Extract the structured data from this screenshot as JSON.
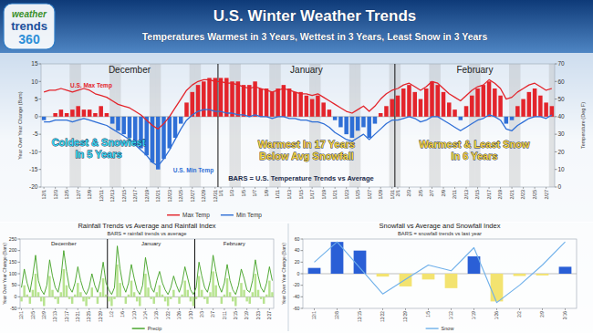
{
  "header": {
    "logo": [
      "weather",
      "trends",
      "360"
    ],
    "title": "U.S. Winter Weather Trends",
    "subtitle": "Temperatures Warmest in 3 Years, Wettest in 3 Years, Least Snow in 3 Years"
  },
  "chart_data": [
    {
      "type": "bar",
      "y_label": "Year Over Year Change (Bars)",
      "y2_label": "Temperature (Deg F)",
      "grid": false,
      "months": [
        {
          "label": "December",
          "index": 0
        },
        {
          "label": "January",
          "index": 31
        },
        {
          "label": "February",
          "index": 62
        }
      ],
      "annotations": [
        [
          "Coldest & Snowiest",
          "In 5 Years"
        ],
        [
          "Warmest In 17 Years",
          "Below Avg Snowfall"
        ],
        [
          "Warmest & Least Snow",
          "In 6 Years"
        ],
        [
          "BARS = U.S. Temperature Trends vs Average"
        ],
        [
          "U.S. Max Temp"
        ],
        [
          "U.S. Min Temp"
        ]
      ],
      "categories": [
        "12/1",
        null,
        "12/3",
        null,
        "12/5",
        null,
        "12/7",
        null,
        "12/9",
        null,
        "12/11",
        null,
        "12/13",
        null,
        "12/15",
        null,
        "12/17",
        null,
        "12/19",
        null,
        "12/21",
        null,
        "12/23",
        null,
        "12/25",
        null,
        "12/27",
        null,
        "12/29",
        null,
        "12/31",
        "1/1",
        null,
        "1/3",
        null,
        "1/5",
        null,
        "1/7",
        null,
        "1/9",
        null,
        "1/11",
        null,
        "1/13",
        null,
        "1/15",
        null,
        "1/17",
        null,
        "1/19",
        null,
        "1/21",
        null,
        "1/23",
        null,
        "1/25",
        null,
        "1/27",
        null,
        "1/29",
        null,
        "1/31",
        "2/1",
        null,
        "2/3",
        null,
        "2/5",
        null,
        "2/7",
        null,
        "2/9",
        null,
        "2/11",
        null,
        "2/13",
        null,
        "2/15",
        null,
        "2/17",
        null,
        "2/19",
        null,
        "2/21",
        null,
        "2/23",
        null,
        "2/25",
        null,
        "2/27",
        null
      ],
      "ylim": [
        -20,
        15
      ],
      "yticks": [
        -20,
        -15,
        -10,
        -5,
        0,
        5,
        10,
        15
      ],
      "y2lim": [
        0,
        70
      ],
      "y2ticks": [
        0,
        10,
        20,
        30,
        40,
        50,
        60,
        70
      ],
      "series": [
        {
          "type": "bar",
          "values": [
            -1,
            0,
            1,
            2,
            1,
            2,
            3,
            2,
            2,
            1,
            3,
            1,
            -2,
            -4,
            -5,
            -6,
            -8,
            -9,
            -11,
            -13,
            -15,
            -12,
            -9,
            -6,
            -2,
            4,
            7,
            9,
            10,
            11,
            11,
            11,
            11,
            10,
            10,
            9,
            9,
            10,
            8,
            8,
            7,
            8,
            9,
            8,
            7,
            7,
            6,
            5,
            6,
            4,
            2,
            -1,
            -3,
            -5,
            -6,
            -4,
            -3,
            -6,
            -2,
            1,
            3,
            5,
            6,
            8,
            9,
            7,
            5,
            8,
            10,
            9,
            7,
            4,
            2,
            -1,
            3,
            6,
            8,
            9,
            10,
            8,
            6,
            -2,
            -1,
            3,
            5,
            7,
            8,
            6,
            4,
            3
          ],
          "colors": [
            "#2f6fd6",
            "#e3242b",
            "#e3242b",
            "#e3242b",
            "#e3242b",
            "#e3242b",
            "#e3242b",
            "#e3242b",
            "#e3242b",
            "#e3242b",
            "#e3242b",
            "#e3242b",
            "#2f6fd6",
            "#2f6fd6",
            "#2f6fd6",
            "#2f6fd6",
            "#2f6fd6",
            "#2f6fd6",
            "#2f6fd6",
            "#2f6fd6",
            "#2f6fd6",
            "#2f6fd6",
            "#2f6fd6",
            "#2f6fd6",
            "#2f6fd6",
            "#e3242b",
            "#e3242b",
            "#e3242b",
            "#e3242b",
            "#e3242b",
            "#e3242b",
            "#e3242b",
            "#e3242b",
            "#e3242b",
            "#e3242b",
            "#e3242b",
            "#e3242b",
            "#e3242b",
            "#e3242b",
            "#e3242b",
            "#e3242b",
            "#e3242b",
            "#e3242b",
            "#e3242b",
            "#e3242b",
            "#e3242b",
            "#e3242b",
            "#e3242b",
            "#e3242b",
            "#e3242b",
            "#e3242b",
            "#2f6fd6",
            "#2f6fd6",
            "#2f6fd6",
            "#2f6fd6",
            "#2f6fd6",
            "#2f6fd6",
            "#2f6fd6",
            "#2f6fd6",
            "#e3242b",
            "#e3242b",
            "#e3242b",
            "#e3242b",
            "#e3242b",
            "#e3242b",
            "#e3242b",
            "#e3242b",
            "#e3242b",
            "#e3242b",
            "#e3242b",
            "#e3242b",
            "#e3242b",
            "#e3242b",
            "#2f6fd6",
            "#e3242b",
            "#e3242b",
            "#e3242b",
            "#e3242b",
            "#e3242b",
            "#e3242b",
            "#e3242b",
            "#2f6fd6",
            "#2f6fd6",
            "#e3242b",
            "#e3242b",
            "#e3242b",
            "#e3242b",
            "#e3242b",
            "#e3242b",
            "#e3242b"
          ]
        },
        {
          "name": "Max Temp",
          "type": "line",
          "axis": "y2",
          "color": "#e3242b",
          "values": [
            54,
            55,
            55,
            56,
            55,
            54,
            55,
            56,
            55,
            53,
            52,
            51,
            49,
            47,
            46,
            45,
            43,
            41,
            38,
            35,
            33,
            36,
            40,
            45,
            50,
            55,
            58,
            60,
            61,
            61,
            60,
            60,
            59,
            59,
            58,
            57,
            56,
            57,
            56,
            55,
            54,
            55,
            56,
            55,
            54,
            53,
            53,
            52,
            53,
            51,
            49,
            47,
            45,
            43,
            42,
            44,
            46,
            43,
            46,
            50,
            53,
            55,
            56,
            58,
            59,
            57,
            55,
            57,
            60,
            59,
            56,
            53,
            51,
            49,
            52,
            55,
            57,
            58,
            61,
            59,
            56,
            50,
            51,
            54,
            56,
            58,
            59,
            57,
            55,
            56
          ]
        },
        {
          "name": "Min Temp",
          "type": "line",
          "axis": "y2",
          "color": "#2f6fd6",
          "values": [
            37,
            37,
            38,
            38,
            38,
            37,
            38,
            39,
            38,
            37,
            36,
            35,
            33,
            31,
            29,
            27,
            24,
            21,
            18,
            14,
            12,
            16,
            21,
            27,
            33,
            38,
            41,
            43,
            44,
            44,
            43,
            43,
            42,
            42,
            41,
            41,
            40,
            41,
            40,
            40,
            39,
            40,
            40,
            39,
            39,
            38,
            38,
            37,
            37,
            36,
            34,
            31,
            29,
            27,
            26,
            28,
            30,
            27,
            30,
            33,
            36,
            38,
            38,
            39,
            40,
            39,
            37,
            38,
            40,
            40,
            38,
            36,
            34,
            32,
            34,
            36,
            38,
            39,
            41,
            40,
            38,
            33,
            32,
            35,
            37,
            39,
            40,
            40,
            39,
            41
          ]
        }
      ]
    },
    {
      "type": "bar",
      "title": "Rainfall Trends vs Average and Rainfall Index",
      "subtitle": "BARS = rainfall trends vs average",
      "y_label": "Year Over Year Change (Bars)",
      "grid": false,
      "months": [
        {
          "label": "December",
          "index": 0
        },
        {
          "label": "January",
          "index": 31
        },
        {
          "label": "February",
          "index": 62
        }
      ],
      "categories": [
        "12/1",
        null,
        null,
        null,
        "12/5",
        null,
        null,
        null,
        "12/9",
        null,
        null,
        null,
        "12/13",
        null,
        null,
        null,
        "12/17",
        null,
        null,
        null,
        "12/21",
        null,
        null,
        null,
        "12/25",
        null,
        null,
        null,
        "12/29",
        null,
        null,
        null,
        "1/2",
        null,
        null,
        null,
        "1/6",
        null,
        null,
        null,
        "1/10",
        null,
        null,
        null,
        "1/14",
        null,
        null,
        null,
        "1/18",
        null,
        null,
        null,
        "1/22",
        null,
        null,
        null,
        "1/26",
        null,
        null,
        null,
        "1/30",
        null,
        null,
        null,
        "2/3",
        null,
        null,
        null,
        "2/7",
        null,
        null,
        null,
        "2/11",
        null,
        null,
        null,
        "2/15",
        null,
        null,
        null,
        "2/19",
        null,
        null,
        null,
        "2/23",
        null,
        null,
        null,
        "2/27",
        null
      ],
      "ylim": [
        -50,
        250
      ],
      "yticks": [
        -50,
        0,
        50,
        100,
        150,
        200,
        250
      ],
      "series": [
        {
          "type": "bar",
          "color": "#b7e38f",
          "values": [
            -20,
            50,
            10,
            -30,
            30,
            100,
            20,
            -20,
            -40,
            0,
            90,
            30,
            -10,
            -30,
            20,
            120,
            50,
            -10,
            -30,
            10,
            60,
            20,
            -20,
            -40,
            -10,
            40,
            0,
            -30,
            20,
            80,
            10,
            -20,
            -40,
            -10,
            140,
            60,
            0,
            -30,
            10,
            70,
            20,
            -20,
            -40,
            0,
            100,
            40,
            -10,
            -30,
            20,
            50,
            10,
            -20,
            -40,
            -10,
            30,
            0,
            -30,
            10,
            70,
            30,
            -20,
            -40,
            -10,
            90,
            30,
            -10,
            -30,
            20,
            110,
            50,
            0,
            -30,
            10,
            80,
            20,
            -20,
            -40,
            0,
            60,
            30,
            -20,
            -30,
            20,
            100,
            30,
            -10,
            -30,
            10,
            70,
            20
          ]
        },
        {
          "name": "Precip",
          "type": "line",
          "color": "#3fa021",
          "values": [
            40,
            120,
            60,
            20,
            90,
            180,
            70,
            30,
            10,
            50,
            160,
            90,
            40,
            20,
            80,
            200,
            110,
            40,
            20,
            60,
            130,
            70,
            30,
            10,
            40,
            100,
            50,
            20,
            70,
            150,
            60,
            30,
            10,
            40,
            220,
            120,
            50,
            20,
            60,
            140,
            80,
            30,
            10,
            50,
            170,
            100,
            40,
            20,
            70,
            110,
            60,
            30,
            10,
            40,
            90,
            50,
            20,
            60,
            130,
            80,
            30,
            10,
            40,
            150,
            90,
            40,
            20,
            70,
            180,
            110,
            50,
            20,
            60,
            140,
            70,
            30,
            10,
            50,
            120,
            80,
            30,
            20,
            70,
            160,
            90,
            40,
            20,
            60,
            130,
            70
          ]
        }
      ]
    },
    {
      "type": "bar",
      "title": "Snowfall vs Average and Snowfall Index",
      "subtitle": "BARS = snowfall trends vs last year",
      "y_label": "Year Over Year Change (Bars)",
      "grid": false,
      "categories": [
        "12/1",
        "12/8",
        "12/15",
        "12/22",
        "12/29",
        "1/5",
        "1/12",
        "1/19",
        "1/26",
        "2/2",
        "2/9",
        "2/16"
      ],
      "ylim": [
        -60,
        60
      ],
      "yticks": [
        -60,
        -40,
        -20,
        0,
        20,
        40,
        60
      ],
      "series": [
        {
          "type": "bar",
          "values": [
            10,
            55,
            40,
            -5,
            -22,
            -10,
            -25,
            30,
            -48,
            -4,
            -3,
            12
          ],
          "colors": [
            "#2a5fd6",
            "#2a5fd6",
            "#2a5fd6",
            "#f3e370",
            "#f3e370",
            "#f3e370",
            "#f3e370",
            "#2a5fd6",
            "#f3e370",
            "#f3e370",
            "#f3e370",
            "#2a5fd6"
          ]
        },
        {
          "name": "Snow",
          "type": "line",
          "color": "#6fb0ea",
          "values": [
            20,
            55,
            10,
            -35,
            -10,
            15,
            5,
            45,
            -50,
            -20,
            15,
            55
          ]
        }
      ]
    }
  ]
}
